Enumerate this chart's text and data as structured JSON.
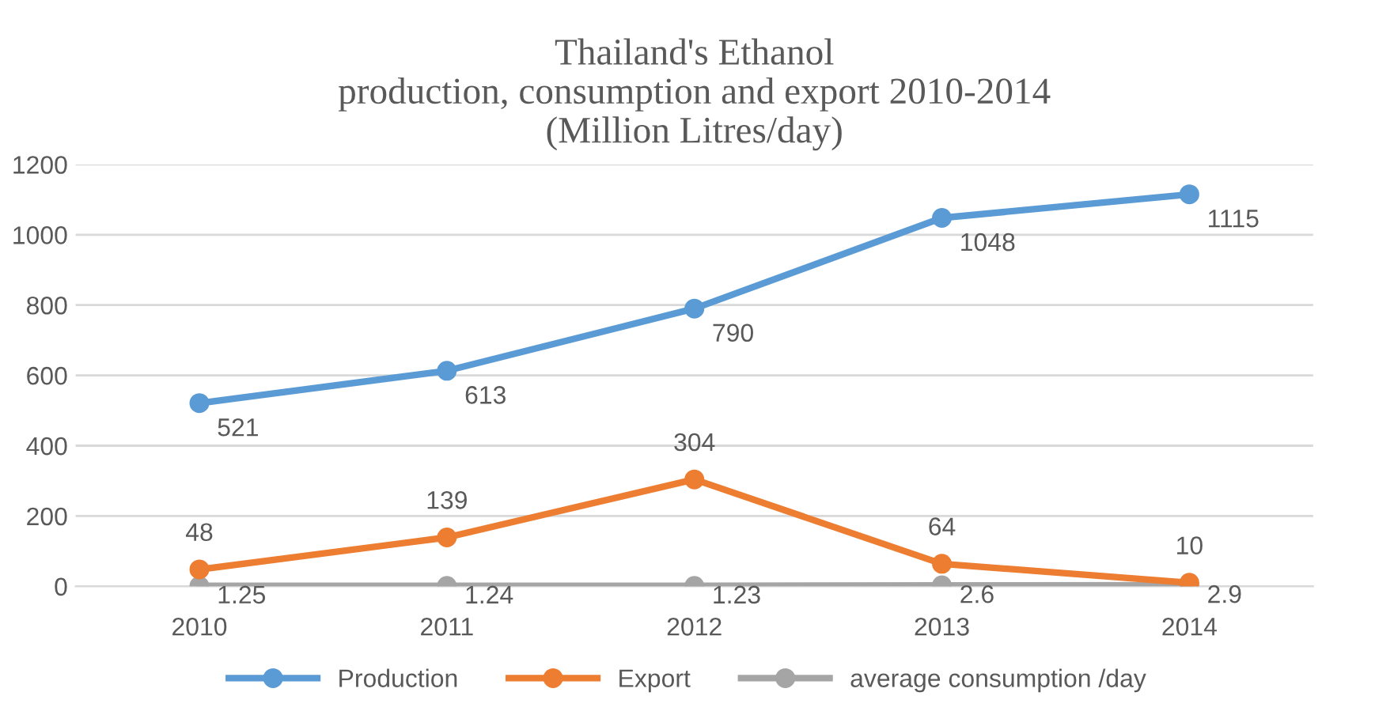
{
  "chart_data": {
    "type": "line",
    "title": "Thailand's Ethanol\nproduction, consumption and export 2010-2014\n(Million Litres/day)",
    "categories": [
      "2010",
      "2011",
      "2012",
      "2013",
      "2014"
    ],
    "series": [
      {
        "name": "Production",
        "color": "#5b9bd5",
        "values": [
          521,
          613,
          790,
          1048,
          1115
        ]
      },
      {
        "name": "Export",
        "color": "#ed7d31",
        "values": [
          48,
          139,
          304,
          64,
          10
        ]
      },
      {
        "name": "average consumption /day",
        "color": "#a5a5a5",
        "values": [
          1.25,
          1.24,
          1.23,
          2.6,
          2.9
        ]
      }
    ],
    "ylim": [
      0,
      1200
    ],
    "yticks": [
      0,
      200,
      400,
      600,
      800,
      1000,
      1200
    ],
    "grid": "y",
    "legend": "bottom",
    "marker": "circle",
    "line_style": "solid",
    "data_labels": true
  }
}
